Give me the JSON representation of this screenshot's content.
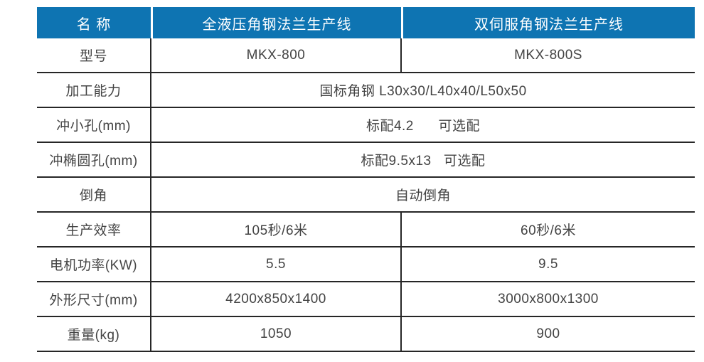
{
  "table": {
    "colors": {
      "accent": "#0e74b2",
      "border": "#262626",
      "text": "#434343",
      "header_text": "#ffffff"
    },
    "header": {
      "name_label": "名 称",
      "col1": "全液压角钢法兰生产线",
      "col2": "双伺服角钢法兰生产线"
    },
    "rows": [
      {
        "label": "型号",
        "span": false,
        "col1": "MKX-800",
        "col2": "MKX-800S"
      },
      {
        "label": "加工能力",
        "span": true,
        "value": "国标角钢 L30x30/L40x40/L50x50"
      },
      {
        "label": "冲小孔(mm)",
        "span": true,
        "value": "标配4.2      可选配"
      },
      {
        "label": "冲椭圆孔(mm)",
        "span": true,
        "value": "标配9.5x13   可选配"
      },
      {
        "label": "倒角",
        "span": true,
        "value": "自动倒角"
      },
      {
        "label": "生产效率",
        "span": false,
        "col1": "105秒/6米",
        "col2": "60秒/6米"
      },
      {
        "label": "电机功率(KW)",
        "span": false,
        "col1": "5.5",
        "col2": "9.5"
      },
      {
        "label": "外形尺寸(mm)",
        "span": false,
        "col1": "4200x850x1400",
        "col2": "3000x800x1300"
      },
      {
        "label": "重量(kg)",
        "span": false,
        "col1": "1050",
        "col2": "900"
      }
    ]
  }
}
